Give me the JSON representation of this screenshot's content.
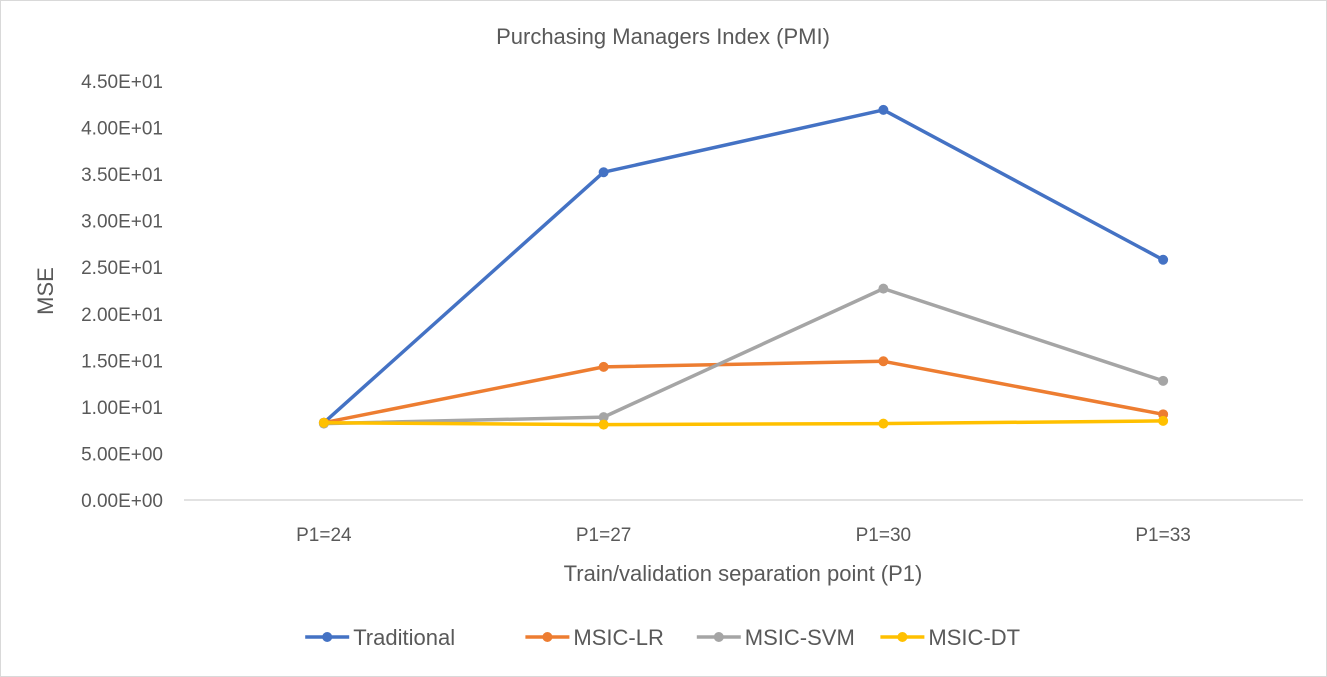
{
  "chart_data": {
    "type": "line",
    "title": "Purchasing Managers Index (PMI)",
    "xlabel": "Train/validation separation point (P1)",
    "ylabel": "MSE",
    "categories": [
      "P1=24",
      "P1=27",
      "P1=30",
      "P1=33"
    ],
    "ylim": [
      0,
      45
    ],
    "yticks": [
      {
        "value": 0,
        "label": "0.00E+00"
      },
      {
        "value": 5,
        "label": "5.00E+00"
      },
      {
        "value": 10,
        "label": "1.00E+01"
      },
      {
        "value": 15,
        "label": "1.50E+01"
      },
      {
        "value": 20,
        "label": "2.00E+01"
      },
      {
        "value": 25,
        "label": "2.50E+01"
      },
      {
        "value": 30,
        "label": "3.00E+01"
      },
      {
        "value": 35,
        "label": "3.50E+01"
      },
      {
        "value": 40,
        "label": "4.00E+01"
      },
      {
        "value": 45,
        "label": "4.50E+01"
      }
    ],
    "grid": false,
    "legend_position": "bottom",
    "series": [
      {
        "name": "Traditional",
        "color": "#4472C4",
        "values": [
          8.3,
          35.2,
          41.9,
          25.8
        ]
      },
      {
        "name": "MSIC-LR",
        "color": "#ED7D31",
        "values": [
          8.3,
          14.3,
          14.9,
          9.2
        ]
      },
      {
        "name": "MSIC-SVM",
        "color": "#A5A5A5",
        "values": [
          8.2,
          8.9,
          22.7,
          12.8
        ]
      },
      {
        "name": "MSIC-DT",
        "color": "#FFC000",
        "values": [
          8.3,
          8.1,
          8.2,
          8.5
        ]
      }
    ]
  }
}
